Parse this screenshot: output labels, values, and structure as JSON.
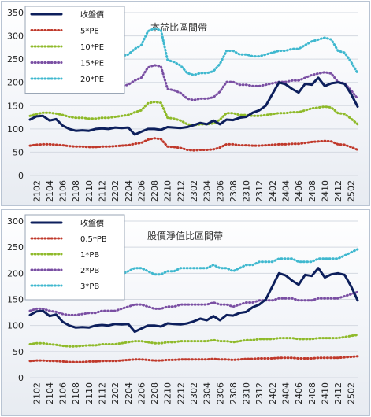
{
  "chart_data": [
    {
      "type": "line",
      "title": "本益比區間帶",
      "ylim": [
        0,
        350
      ],
      "yticks": [
        0,
        50,
        100,
        150,
        200,
        250,
        300,
        350
      ],
      "x": [
        "2101",
        "2102",
        "2103",
        "2104",
        "2105",
        "2106",
        "2107",
        "2108",
        "2109",
        "2110",
        "2111",
        "2112",
        "2201",
        "2202",
        "2203",
        "2204",
        "2205",
        "2206",
        "2207",
        "2208",
        "2209",
        "2210",
        "2211",
        "2212",
        "2301",
        "2302",
        "2303",
        "2304",
        "2305",
        "2306",
        "2307",
        "2308",
        "2309",
        "2310",
        "2311",
        "2312",
        "2401",
        "2402",
        "2403",
        "2404",
        "2405",
        "2406",
        "2407",
        "2408",
        "2409",
        "2410",
        "2411",
        "2412",
        "2501",
        "2502",
        "2503"
      ],
      "xtick_labels": [
        "2102",
        "2104",
        "2106",
        "2108",
        "2110",
        "2112",
        "2202",
        "2204",
        "2206",
        "2208",
        "2210",
        "2212",
        "2302",
        "2304",
        "2306",
        "2308",
        "2310",
        "2312",
        "2402",
        "2404",
        "2406",
        "2408",
        "2410",
        "2412",
        "2502"
      ],
      "legend_position": "top-left",
      "series": [
        {
          "name": "收盤價",
          "color": "#0d1f5c",
          "style": "solid",
          "values": [
            120,
            127,
            128,
            118,
            121,
            107,
            100,
            96,
            97,
            96,
            100,
            101,
            100,
            103,
            102,
            103,
            88,
            94,
            100,
            100,
            98,
            104,
            103,
            102,
            104,
            108,
            113,
            110,
            118,
            110,
            120,
            119,
            124,
            126,
            135,
            140,
            150,
            175,
            200,
            196,
            186,
            178,
            197,
            195,
            210,
            192,
            198,
            200,
            197,
            175,
            148
          ]
        },
        {
          "name": "5*PE",
          "color": "#c0392b",
          "style": "dotted",
          "values": [
            64,
            66,
            67,
            67,
            66,
            65,
            63,
            62,
            62,
            61,
            61,
            62,
            62,
            63,
            64,
            65,
            68,
            70,
            77,
            80,
            78,
            62,
            61,
            59,
            55,
            54,
            55,
            55,
            56,
            60,
            67,
            67,
            65,
            65,
            64,
            64,
            65,
            66,
            67,
            67,
            68,
            68,
            70,
            72,
            73,
            74,
            73,
            67,
            66,
            61,
            55
          ]
        },
        {
          "name": "10*PE",
          "color": "#8fba2a",
          "style": "dotted",
          "values": [
            128,
            132,
            135,
            135,
            133,
            130,
            126,
            124,
            124,
            122,
            122,
            124,
            124,
            126,
            128,
            130,
            136,
            140,
            155,
            158,
            156,
            124,
            122,
            118,
            110,
            108,
            110,
            110,
            112,
            120,
            134,
            134,
            130,
            130,
            128,
            128,
            130,
            132,
            134,
            134,
            136,
            136,
            140,
            144,
            146,
            148,
            146,
            134,
            132,
            122,
            110
          ]
        },
        {
          "name": "15*PE",
          "color": "#7a4fa3",
          "style": "dotted",
          "values": [
            192,
            198,
            202,
            203,
            199,
            195,
            189,
            186,
            186,
            183,
            183,
            186,
            186,
            189,
            192,
            195,
            204,
            210,
            232,
            237,
            234,
            186,
            183,
            177,
            165,
            162,
            165,
            165,
            168,
            180,
            201,
            201,
            195,
            195,
            192,
            192,
            195,
            198,
            201,
            201,
            204,
            204,
            210,
            216,
            219,
            222,
            219,
            201,
            198,
            183,
            165
          ]
        },
        {
          "name": "20*PE",
          "color": "#3fb8cf",
          "style": "dotted",
          "values": [
            256,
            264,
            270,
            270,
            266,
            260,
            252,
            248,
            248,
            244,
            244,
            248,
            248,
            252,
            256,
            260,
            272,
            280,
            310,
            316,
            312,
            248,
            244,
            236,
            220,
            216,
            220,
            220,
            224,
            240,
            268,
            268,
            260,
            260,
            256,
            256,
            260,
            264,
            268,
            268,
            272,
            272,
            280,
            288,
            292,
            296,
            292,
            268,
            264,
            244,
            220
          ]
        }
      ]
    },
    {
      "type": "line",
      "title": "股價淨值比區間帶",
      "ylim": [
        0,
        300
      ],
      "yticks": [
        0,
        50,
        100,
        150,
        200,
        250,
        300
      ],
      "x": [
        "2101",
        "2102",
        "2103",
        "2104",
        "2105",
        "2106",
        "2107",
        "2108",
        "2109",
        "2110",
        "2111",
        "2112",
        "2201",
        "2202",
        "2203",
        "2204",
        "2205",
        "2206",
        "2207",
        "2208",
        "2209",
        "2210",
        "2211",
        "2212",
        "2301",
        "2302",
        "2303",
        "2304",
        "2305",
        "2306",
        "2307",
        "2308",
        "2309",
        "2310",
        "2311",
        "2312",
        "2401",
        "2402",
        "2403",
        "2404",
        "2405",
        "2406",
        "2407",
        "2408",
        "2409",
        "2410",
        "2411",
        "2412",
        "2501",
        "2502",
        "2503"
      ],
      "xtick_labels": [
        "2102",
        "2104",
        "2106",
        "2108",
        "2110",
        "2112",
        "2202",
        "2204",
        "2206",
        "2208",
        "2210",
        "2212",
        "2302",
        "2304",
        "2306",
        "2308",
        "2310",
        "2312",
        "2402",
        "2404",
        "2406",
        "2408",
        "2410",
        "2412",
        "2502"
      ],
      "legend_position": "top-left",
      "series": [
        {
          "name": "收盤價",
          "color": "#0d1f5c",
          "style": "solid",
          "values": [
            120,
            127,
            128,
            118,
            121,
            107,
            100,
            96,
            97,
            96,
            100,
            101,
            100,
            103,
            102,
            103,
            88,
            94,
            100,
            100,
            98,
            104,
            103,
            102,
            104,
            108,
            113,
            110,
            118,
            110,
            120,
            119,
            124,
            126,
            135,
            140,
            150,
            175,
            200,
            196,
            186,
            178,
            197,
            195,
            210,
            192,
            198,
            200,
            197,
            175,
            148
          ]
        },
        {
          "name": "0.5*PB",
          "color": "#c0392b",
          "style": "dotted",
          "values": [
            32,
            33,
            33,
            32,
            32,
            31,
            30,
            30,
            30,
            31,
            31,
            32,
            32,
            32,
            33,
            34,
            35,
            35,
            34,
            33,
            33,
            34,
            34,
            35,
            35,
            35,
            35,
            35,
            36,
            35,
            35,
            34,
            35,
            36,
            36,
            37,
            37,
            37,
            38,
            38,
            38,
            37,
            37,
            37,
            38,
            38,
            38,
            38,
            39,
            40,
            41
          ]
        },
        {
          "name": "1*PB",
          "color": "#8fba2a",
          "style": "dotted",
          "values": [
            64,
            66,
            66,
            64,
            63,
            61,
            60,
            60,
            61,
            62,
            62,
            64,
            64,
            64,
            66,
            68,
            70,
            70,
            68,
            66,
            66,
            68,
            68,
            70,
            70,
            70,
            70,
            70,
            72,
            70,
            70,
            68,
            70,
            72,
            72,
            74,
            74,
            74,
            76,
            76,
            76,
            74,
            74,
            74,
            76,
            76,
            76,
            76,
            78,
            80,
            82
          ]
        },
        {
          "name": "2*PB",
          "color": "#7a4fa3",
          "style": "dotted",
          "values": [
            128,
            132,
            132,
            128,
            126,
            122,
            120,
            120,
            122,
            124,
            124,
            128,
            128,
            128,
            132,
            136,
            140,
            140,
            136,
            132,
            132,
            136,
            136,
            140,
            140,
            140,
            140,
            140,
            144,
            140,
            140,
            136,
            140,
            144,
            144,
            148,
            148,
            148,
            152,
            152,
            152,
            148,
            148,
            148,
            152,
            152,
            152,
            152,
            156,
            160,
            164
          ]
        },
        {
          "name": "3*PB",
          "color": "#3fb8cf",
          "style": "dotted",
          "values": [
            192,
            198,
            198,
            192,
            189,
            183,
            180,
            180,
            183,
            186,
            186,
            192,
            192,
            192,
            198,
            204,
            210,
            210,
            204,
            198,
            198,
            204,
            204,
            210,
            210,
            210,
            210,
            210,
            216,
            210,
            210,
            204,
            210,
            216,
            216,
            222,
            222,
            222,
            228,
            228,
            228,
            222,
            222,
            222,
            228,
            228,
            228,
            228,
            234,
            240,
            246
          ]
        }
      ]
    }
  ]
}
